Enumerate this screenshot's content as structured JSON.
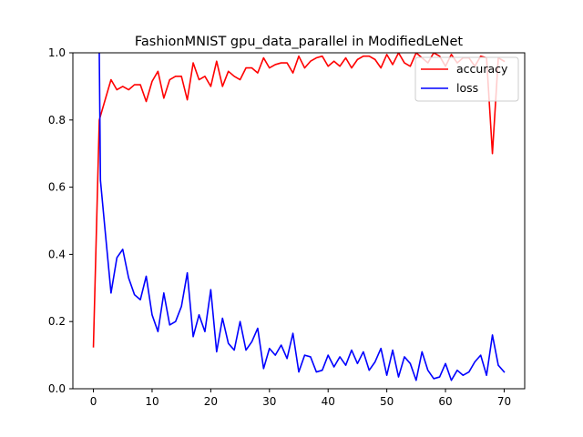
{
  "chart_data": {
    "type": "line",
    "title": "FashionMNIST gpu_data_parallel in ModifiedLeNet",
    "xlabel": "",
    "ylabel": "",
    "xlim": [
      -3.5,
      73.5
    ],
    "ylim": [
      0,
      1.0
    ],
    "xticks": [
      0,
      10,
      20,
      30,
      40,
      50,
      60,
      70
    ],
    "yticks": [
      0.0,
      0.2,
      0.4,
      0.6,
      0.8,
      1.0
    ],
    "xtick_labels": [
      "0",
      "10",
      "20",
      "30",
      "40",
      "50",
      "60",
      "70"
    ],
    "ytick_labels": [
      "0.0",
      "0.2",
      "0.4",
      "0.6",
      "0.8",
      "1.0"
    ],
    "grid": false,
    "legend_position": "top-right",
    "series": [
      {
        "name": "accuracy",
        "color": "#ff0000",
        "x": [
          0,
          1,
          2,
          3,
          4,
          5,
          6,
          7,
          8,
          9,
          10,
          11,
          12,
          13,
          14,
          15,
          16,
          17,
          18,
          19,
          20,
          21,
          22,
          23,
          24,
          25,
          26,
          27,
          28,
          29,
          30,
          31,
          32,
          33,
          34,
          35,
          36,
          37,
          38,
          39,
          40,
          41,
          42,
          43,
          44,
          45,
          46,
          47,
          48,
          49,
          50,
          51,
          52,
          53,
          54,
          55,
          56,
          57,
          58,
          59,
          60,
          61,
          62,
          63,
          64,
          65,
          66,
          67,
          68,
          69,
          70
        ],
        "values": [
          0.125,
          0.8,
          0.86,
          0.92,
          0.89,
          0.9,
          0.89,
          0.905,
          0.905,
          0.855,
          0.915,
          0.945,
          0.865,
          0.92,
          0.93,
          0.93,
          0.86,
          0.97,
          0.92,
          0.93,
          0.9,
          0.975,
          0.9,
          0.945,
          0.93,
          0.92,
          0.955,
          0.955,
          0.94,
          0.985,
          0.955,
          0.965,
          0.97,
          0.97,
          0.94,
          0.99,
          0.955,
          0.975,
          0.985,
          0.99,
          0.96,
          0.975,
          0.96,
          0.985,
          0.955,
          0.98,
          0.99,
          0.99,
          0.98,
          0.955,
          0.995,
          0.965,
          1.0,
          0.97,
          0.96,
          1.0,
          0.985,
          0.97,
          1.0,
          0.99,
          0.96,
          0.995,
          0.97,
          0.985,
          0.985,
          0.96,
          0.99,
          0.985,
          0.7,
          0.985,
          0.975
        ]
      },
      {
        "name": "loss",
        "color": "#0000ff",
        "x": [
          1,
          1.2,
          2,
          3,
          4,
          5,
          6,
          7,
          8,
          9,
          10,
          11,
          12,
          13,
          14,
          15,
          16,
          17,
          18,
          19,
          20,
          21,
          22,
          23,
          24,
          25,
          26,
          27,
          28,
          29,
          30,
          31,
          32,
          33,
          34,
          35,
          36,
          37,
          38,
          39,
          40,
          41,
          42,
          43,
          44,
          45,
          46,
          47,
          48,
          49,
          50,
          51,
          52,
          53,
          54,
          55,
          56,
          57,
          58,
          59,
          60,
          61,
          62,
          63,
          64,
          65,
          66,
          67,
          68,
          69,
          70
        ],
        "values": [
          1.0,
          0.62,
          0.47,
          0.285,
          0.39,
          0.415,
          0.33,
          0.28,
          0.265,
          0.335,
          0.22,
          0.17,
          0.285,
          0.19,
          0.2,
          0.245,
          0.345,
          0.155,
          0.22,
          0.17,
          0.295,
          0.11,
          0.21,
          0.135,
          0.115,
          0.2,
          0.115,
          0.14,
          0.18,
          0.06,
          0.12,
          0.1,
          0.13,
          0.09,
          0.165,
          0.05,
          0.1,
          0.095,
          0.05,
          0.055,
          0.1,
          0.065,
          0.095,
          0.07,
          0.115,
          0.075,
          0.11,
          0.055,
          0.08,
          0.12,
          0.04,
          0.115,
          0.035,
          0.095,
          0.075,
          0.025,
          0.11,
          0.055,
          0.03,
          0.035,
          0.075,
          0.025,
          0.055,
          0.04,
          0.05,
          0.08,
          0.1,
          0.04,
          0.16,
          0.07,
          0.05
        ]
      }
    ]
  }
}
